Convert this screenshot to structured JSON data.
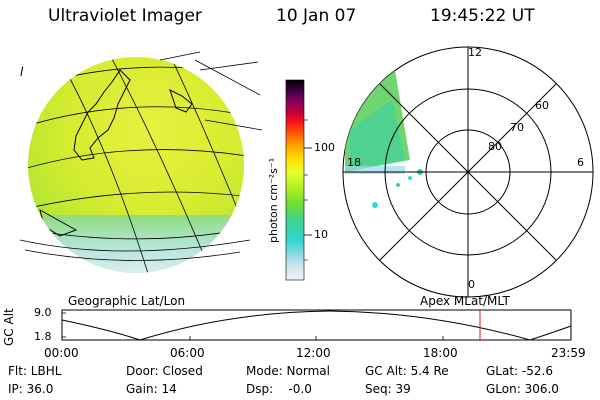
{
  "header": {
    "title": "Ultraviolet Imager",
    "date": "10 Jan 07",
    "time": "19:45:22 UT"
  },
  "left_panel": {
    "corner_mark": "l",
    "footer_label": "Geographic Lat/Lon"
  },
  "colorbar": {
    "unit_label": "photon cm⁻²s⁻¹",
    "ticks": [
      "100",
      "10"
    ],
    "colors": [
      "#000000",
      "#3a0040",
      "#800060",
      "#c0003a",
      "#ff1a1a",
      "#ff6a00",
      "#ffb000",
      "#ffe000",
      "#e8ff30",
      "#b0f020",
      "#70e030",
      "#40d090",
      "#30d8d0",
      "#9ad8e8",
      "#d8e6ee",
      "#f0f4f6"
    ]
  },
  "polar_panel": {
    "mlt_labels": {
      "top": "12",
      "left": "18",
      "right": "6",
      "bottom": "0"
    },
    "lat_labels": [
      "60",
      "70",
      "80"
    ],
    "footer_label": "Apex MLat/MLT"
  },
  "orbit_plot": {
    "y_axis_label": "GC Alt",
    "y_ticks": [
      "9.0",
      "1.8"
    ],
    "x_ticks": [
      "00:00",
      "06:00",
      "12:00",
      "18:00",
      "23:59"
    ],
    "marker_color": "#d02020"
  },
  "status": {
    "flt": "Flt: LBHL",
    "ip": "IP: 36.0",
    "door": "Door: Closed",
    "gain": "Gain: 14",
    "mode": "Mode: Normal",
    "dsp": "Dsp:    -0.0",
    "gc_alt": "GC Alt: 5.4 Re",
    "seq": "Seq: 39",
    "glat": "GLat: -52.6",
    "glon": "GLon: 306.0"
  }
}
